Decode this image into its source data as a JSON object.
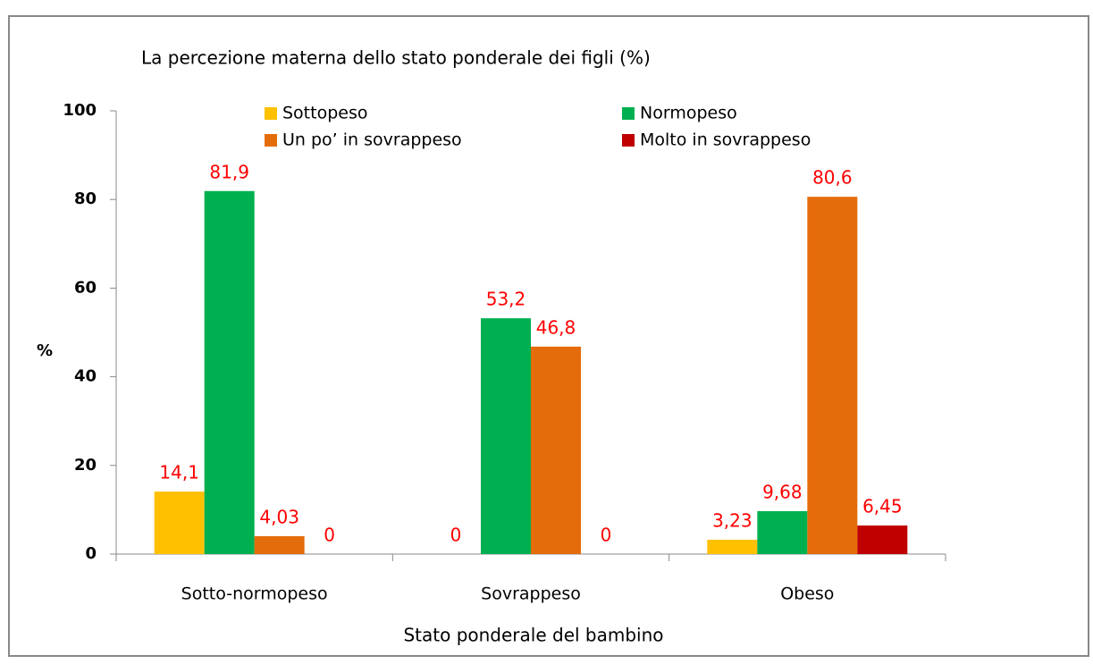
{
  "chart_data": {
    "type": "bar",
    "title": "La percezione materna dello stato ponderale dei figli (%)",
    "x_label": "Stato ponderale  del bambino",
    "y_label": "%",
    "categories": [
      "Sotto-normopeso",
      "Sovrappeso",
      "Obeso"
    ],
    "series": [
      {
        "name": "Sottopeso",
        "color": "#ffc000",
        "values": [
          14.1,
          0,
          3.23
        ],
        "value_labels": [
          "14,1",
          "0",
          "3,23"
        ]
      },
      {
        "name": "Normopeso",
        "color": "#00b050",
        "values": [
          81.9,
          53.2,
          9.68
        ],
        "value_labels": [
          "81,9",
          "53,2",
          "9,68"
        ]
      },
      {
        "name": "Un po’ in sovrappeso",
        "color": "#e46c0a",
        "values": [
          4.03,
          46.8,
          80.6
        ],
        "value_labels": [
          "4,03",
          "46,8",
          "80,6"
        ]
      },
      {
        "name": "Molto in sovrappeso",
        "color": "#c00000",
        "values": [
          0,
          0,
          6.45
        ],
        "value_labels": [
          "0",
          "0",
          "6,45"
        ]
      }
    ],
    "ylim": [
      0,
      100
    ],
    "yticks": [
      0,
      20,
      40,
      60,
      80,
      100
    ],
    "grid": false
  }
}
